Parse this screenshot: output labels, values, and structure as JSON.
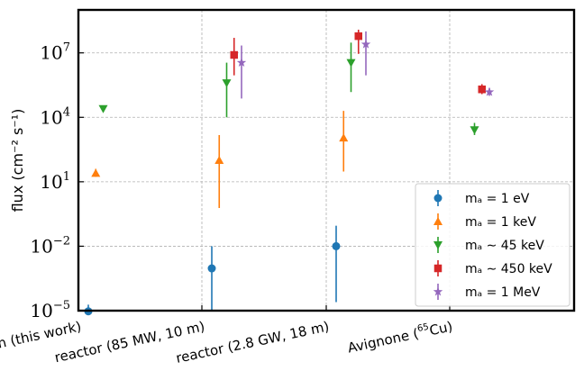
{
  "chart_data": {
    "type": "scatter",
    "title": "",
    "xlabel": "",
    "ylabel": "flux (cm⁻² s⁻¹)",
    "yscale": "log",
    "ylim_exponents": [
      -5,
      9
    ],
    "yticks": [
      {
        "base": "10",
        "exp": "−5",
        "exp_value": -5
      },
      {
        "base": "10",
        "exp": "−2",
        "exp_value": -2
      },
      {
        "base": "10",
        "exp": "1",
        "exp_value": 1
      },
      {
        "base": "10",
        "exp": "4",
        "exp_value": 4
      },
      {
        "base": "10",
        "exp": "7",
        "exp_value": 7
      }
    ],
    "categories": [
      {
        "text": "Sun (this work)",
        "sup": "",
        "tail": ""
      },
      {
        "text": "reactor (85 MW, 10 m)",
        "sup": "",
        "tail": ""
      },
      {
        "text": "reactor (2.8 GW, 18 m)",
        "sup": "",
        "tail": ""
      },
      {
        "text": "Avignone (",
        "sup": "65",
        "tail": "Cu)"
      }
    ],
    "grid": true,
    "legend_position": "lower right",
    "series": [
      {
        "name": "mₐ = 1 eV",
        "color": "#1f77b4",
        "marker": "circle",
        "points": [
          {
            "cat": 0,
            "offset": -0.6,
            "y": 9.3e-06,
            "lo": 5.5e-06,
            "hi": 1.9e-05
          },
          {
            "cat": 1,
            "offset": -0.6,
            "y": 0.00093,
            "lo": 1e-05,
            "hi": 0.01
          },
          {
            "cat": 2,
            "offset": -0.6,
            "y": 0.01,
            "lo": 2.5e-05,
            "hi": 0.09
          }
        ]
      },
      {
        "name": "mₐ = 1 keV",
        "color": "#ff7f0e",
        "marker": "triangle-up",
        "points": [
          {
            "cat": 0,
            "offset": -0.3,
            "y": 25,
            "lo": 17,
            "hi": 40
          },
          {
            "cat": 1,
            "offset": -0.3,
            "y": 100,
            "lo": 0.6,
            "hi": 1500
          },
          {
            "cat": 2,
            "offset": -0.3,
            "y": 1100,
            "lo": 30,
            "hi": 20000
          }
        ]
      },
      {
        "name": "mₐ ∼ 45 keV",
        "color": "#2ca02c",
        "marker": "triangle-down",
        "points": [
          {
            "cat": 0,
            "offset": 0.0,
            "y": 25000,
            "lo": 20000,
            "hi": 32000
          },
          {
            "cat": 1,
            "offset": 0.0,
            "y": 400000,
            "lo": 10000,
            "hi": 3500000
          },
          {
            "cat": 2,
            "offset": 0.0,
            "y": 3500000,
            "lo": 150000,
            "hi": 30000000
          },
          {
            "cat": 3,
            "offset": 0.0,
            "y": 2600,
            "lo": 1500,
            "hi": 5500
          }
        ]
      },
      {
        "name": "mₐ ∼ 450 keV",
        "color": "#d62728",
        "marker": "square",
        "points": [
          {
            "cat": 1,
            "offset": 0.3,
            "y": 8000000,
            "lo": 900000,
            "hi": 50000000
          },
          {
            "cat": 2,
            "offset": 0.3,
            "y": 60000000,
            "lo": 9000000,
            "hi": 120000000
          },
          {
            "cat": 3,
            "offset": 0.3,
            "y": 200000,
            "lo": 120000,
            "hi": 350000
          }
        ]
      },
      {
        "name": "mₐ = 1 MeV",
        "color": "#9467bd",
        "marker": "star",
        "points": [
          {
            "cat": 1,
            "offset": 0.6,
            "y": 3500000,
            "lo": 75000,
            "hi": 22000000
          },
          {
            "cat": 2,
            "offset": 0.6,
            "y": 25000000,
            "lo": 900000,
            "hi": 100000000
          },
          {
            "cat": 3,
            "offset": 0.6,
            "y": 150000,
            "lo": 100000,
            "hi": 230000
          }
        ]
      }
    ]
  }
}
